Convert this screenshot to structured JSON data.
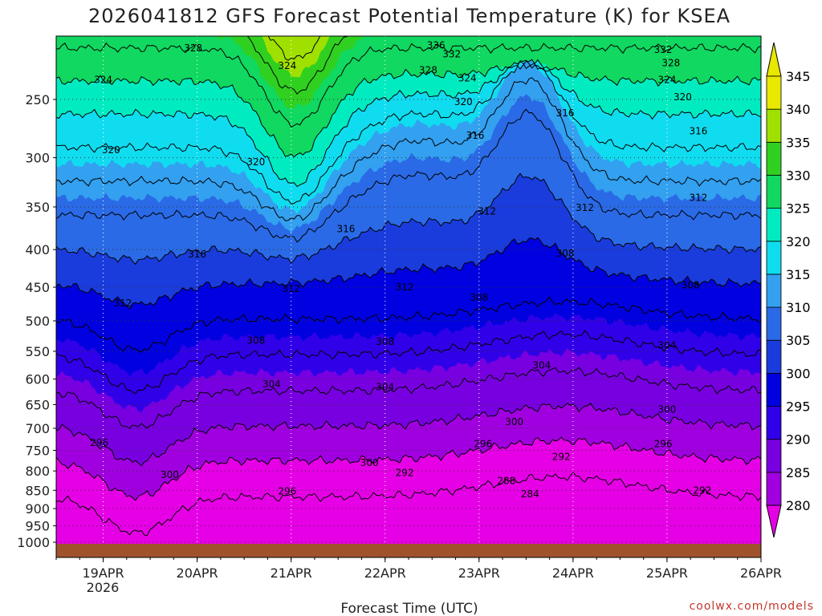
{
  "chart_data": {
    "type": "heatmap",
    "title": "2026041812 GFS Forecast Potential Temperature (K) for KSEA",
    "xlabel": "Forecast Time (UTC)",
    "ylabel": "",
    "x_ticks": [
      "19APR",
      "20APR",
      "21APR",
      "22APR",
      "23APR",
      "24APR",
      "25APR",
      "26APR"
    ],
    "x_year_label": "2026",
    "xlim": [
      "2026-04-18T12:00Z",
      "2026-04-26T00:00Z"
    ],
    "y_ticks": [
      250,
      300,
      350,
      400,
      450,
      500,
      550,
      600,
      650,
      700,
      750,
      800,
      850,
      900,
      950,
      1000
    ],
    "ylim": [
      1000,
      200
    ],
    "y_axis": "pressure (inverted)",
    "colorbar": {
      "levels": [
        280,
        285,
        290,
        295,
        300,
        305,
        310,
        315,
        320,
        325,
        330,
        335,
        340,
        345
      ],
      "colors": [
        "#e600e6",
        "#a000e0",
        "#7800e0",
        "#3000e8",
        "#0000e0",
        "#1a3cdc",
        "#2a6ae6",
        "#33a0f0",
        "#10dcf0",
        "#00ecc0",
        "#10d860",
        "#30d020",
        "#a0e000",
        "#e8e800"
      ],
      "extend": "both"
    },
    "contour_labels": [
      {
        "text": "328",
        "x": "2026-04-19T23:00Z",
        "p": 213
      },
      {
        "text": "324",
        "x": "2026-04-19T00:00Z",
        "p": 235
      },
      {
        "text": "324",
        "x": "2026-04-20T23:00Z",
        "p": 225
      },
      {
        "text": "336",
        "x": "2026-04-22T13:00Z",
        "p": 211
      },
      {
        "text": "332",
        "x": "2026-04-22T17:00Z",
        "p": 217
      },
      {
        "text": "328",
        "x": "2026-04-22T11:00Z",
        "p": 228
      },
      {
        "text": "324",
        "x": "2026-04-22T21:00Z",
        "p": 234
      },
      {
        "text": "320",
        "x": "2026-04-22T20:00Z",
        "p": 252
      },
      {
        "text": "332",
        "x": "2026-04-24T23:00Z",
        "p": 214
      },
      {
        "text": "328",
        "x": "2026-04-25T01:00Z",
        "p": 223
      },
      {
        "text": "324",
        "x": "2026-04-25T00:00Z",
        "p": 235
      },
      {
        "text": "320",
        "x": "2026-04-25T04:00Z",
        "p": 248
      },
      {
        "text": "316",
        "x": "2026-04-23T22:00Z",
        "p": 261
      },
      {
        "text": "316",
        "x": "2026-04-22T23:00Z",
        "p": 280
      },
      {
        "text": "316",
        "x": "2026-04-25T08:00Z",
        "p": 276
      },
      {
        "text": "320",
        "x": "2026-04-19T02:00Z",
        "p": 293
      },
      {
        "text": "320",
        "x": "2026-04-20T15:00Z",
        "p": 304
      },
      {
        "text": "312",
        "x": "2026-04-25T08:00Z",
        "p": 340
      },
      {
        "text": "312",
        "x": "2026-04-24T03:00Z",
        "p": 351
      },
      {
        "text": "312",
        "x": "2026-04-23T02:00Z",
        "p": 355
      },
      {
        "text": "316",
        "x": "2026-04-21T14:00Z",
        "p": 375
      },
      {
        "text": "316",
        "x": "2026-04-19T24:00Z",
        "p": 406
      },
      {
        "text": "308",
        "x": "2026-04-23T22:00Z",
        "p": 405
      },
      {
        "text": "312",
        "x": "2026-04-21T00:00Z",
        "p": 452
      },
      {
        "text": "312",
        "x": "2026-04-22T05:00Z",
        "p": 450
      },
      {
        "text": "308",
        "x": "2026-04-25T06:00Z",
        "p": 447
      },
      {
        "text": "312",
        "x": "2026-04-19T05:00Z",
        "p": 473
      },
      {
        "text": "308",
        "x": "2026-04-23T00:00Z",
        "p": 465
      },
      {
        "text": "308",
        "x": "2026-04-20T15:00Z",
        "p": 532
      },
      {
        "text": "308",
        "x": "2026-04-21T24:00Z",
        "p": 534
      },
      {
        "text": "304",
        "x": "2026-04-25T00:00Z",
        "p": 540
      },
      {
        "text": "304",
        "x": "2026-04-23T16:00Z",
        "p": 575
      },
      {
        "text": "304",
        "x": "2026-04-20T19:00Z",
        "p": 610
      },
      {
        "text": "304",
        "x": "2026-04-21T24:00Z",
        "p": 615
      },
      {
        "text": "300",
        "x": "2026-04-24T24:00Z",
        "p": 660
      },
      {
        "text": "300",
        "x": "2026-04-23T09:00Z",
        "p": 686
      },
      {
        "text": "296",
        "x": "2026-04-18T23:00Z",
        "p": 732
      },
      {
        "text": "296",
        "x": "2026-04-23T01:00Z",
        "p": 735
      },
      {
        "text": "296",
        "x": "2026-04-24T23:00Z",
        "p": 735
      },
      {
        "text": "300",
        "x": "2026-04-21T20:00Z",
        "p": 780
      },
      {
        "text": "292",
        "x": "2026-04-23T21:00Z",
        "p": 765
      },
      {
        "text": "292",
        "x": "2026-04-22T05:00Z",
        "p": 805
      },
      {
        "text": "300",
        "x": "2026-04-19T17:00Z",
        "p": 810
      },
      {
        "text": "288",
        "x": "2026-04-23T07:00Z",
        "p": 825
      },
      {
        "text": "284",
        "x": "2026-04-23T13:00Z",
        "p": 860
      },
      {
        "text": "296",
        "x": "2026-04-20T23:00Z",
        "p": 853
      },
      {
        "text": "292",
        "x": "2026-04-25T09:00Z",
        "p": 850
      }
    ],
    "grid": true,
    "legend": "colorbar-right"
  },
  "credit": "coolwx.com/models"
}
